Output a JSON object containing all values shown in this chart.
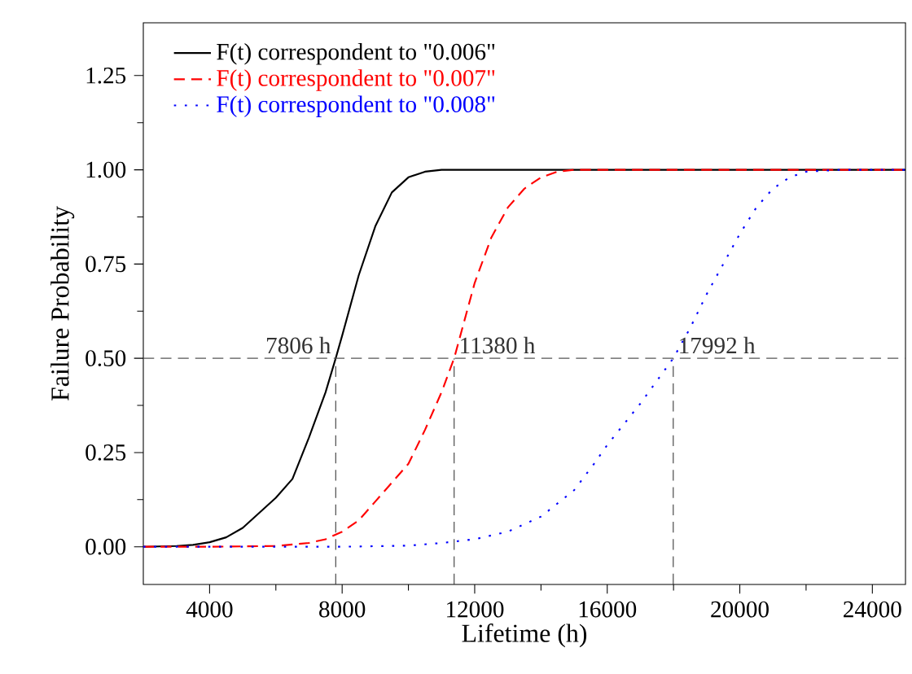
{
  "chart_data": {
    "type": "line",
    "xlabel": "Lifetime (h)",
    "ylabel": "Failure Probability",
    "series": [
      {
        "name": "F(t) correspondent to \"0.006\"",
        "color": "#000000",
        "line_style": "solid",
        "x": [
          2000,
          3000,
          3500,
          4000,
          4500,
          5000,
          5500,
          6000,
          6500,
          7000,
          7500,
          7806,
          8000,
          8500,
          9000,
          9500,
          10000,
          10500,
          11000,
          25000
        ],
        "values": [
          0,
          0.002,
          0.005,
          0.012,
          0.025,
          0.05,
          0.09,
          0.13,
          0.18,
          0.29,
          0.41,
          0.5,
          0.56,
          0.72,
          0.85,
          0.94,
          0.98,
          0.995,
          1.0,
          1.0
        ]
      },
      {
        "name": "F(t) correspondent to \"0.007\"",
        "color": "#ff0000",
        "line_style": "dashed",
        "x": [
          2000,
          4000,
          6000,
          7000,
          7500,
          8000,
          8500,
          9000,
          9500,
          10000,
          10500,
          11000,
          11380,
          12000,
          12500,
          13000,
          13500,
          14000,
          14500,
          15000,
          25000
        ],
        "values": [
          0,
          0,
          0.002,
          0.01,
          0.02,
          0.04,
          0.07,
          0.12,
          0.17,
          0.22,
          0.31,
          0.41,
          0.5,
          0.7,
          0.82,
          0.9,
          0.95,
          0.98,
          0.995,
          1.0,
          1.0
        ]
      },
      {
        "name": "F(t) correspondent to \"0.008\"",
        "color": "#0000ff",
        "line_style": "dotted",
        "x": [
          2000,
          8000,
          10000,
          11000,
          12000,
          13000,
          14000,
          15000,
          15600,
          16000,
          17000,
          17992,
          18500,
          19000,
          19500,
          20000,
          20500,
          21000,
          21500,
          22000,
          23000,
          25000
        ],
        "values": [
          0,
          0,
          0.003,
          0.01,
          0.02,
          0.04,
          0.08,
          0.15,
          0.22,
          0.27,
          0.38,
          0.5,
          0.58,
          0.67,
          0.75,
          0.83,
          0.9,
          0.95,
          0.98,
          0.995,
          1.0,
          1.0
        ]
      }
    ],
    "ref_lines": [
      {
        "axis": "y",
        "value": 0.5,
        "color": "#555555",
        "line_style": "dashed"
      },
      {
        "axis": "x",
        "value": 7806,
        "label": "7806 h",
        "color": "#333333",
        "line_style": "dashed"
      },
      {
        "axis": "x",
        "value": 11380,
        "label": "11380 h",
        "color": "#333333",
        "line_style": "dashed"
      },
      {
        "axis": "x",
        "value": 17992,
        "label": "17992 h",
        "color": "#333333",
        "line_style": "dashed"
      }
    ],
    "xlim": [
      2000,
      25000
    ],
    "ylim": [
      -0.1,
      1.39
    ],
    "xticks": [
      4000,
      8000,
      12000,
      16000,
      20000,
      24000
    ],
    "yticks": [
      {
        "value": 0,
        "label": "0.00"
      },
      {
        "value": 0.25,
        "label": "0.25"
      },
      {
        "value": 0.5,
        "label": "0.50"
      },
      {
        "value": 0.75,
        "label": "0.75"
      },
      {
        "value": 1,
        "label": "1.00"
      },
      {
        "value": 1.25,
        "label": "1.25"
      }
    ],
    "grid": false,
    "legend": "top left",
    "marker": "none"
  }
}
